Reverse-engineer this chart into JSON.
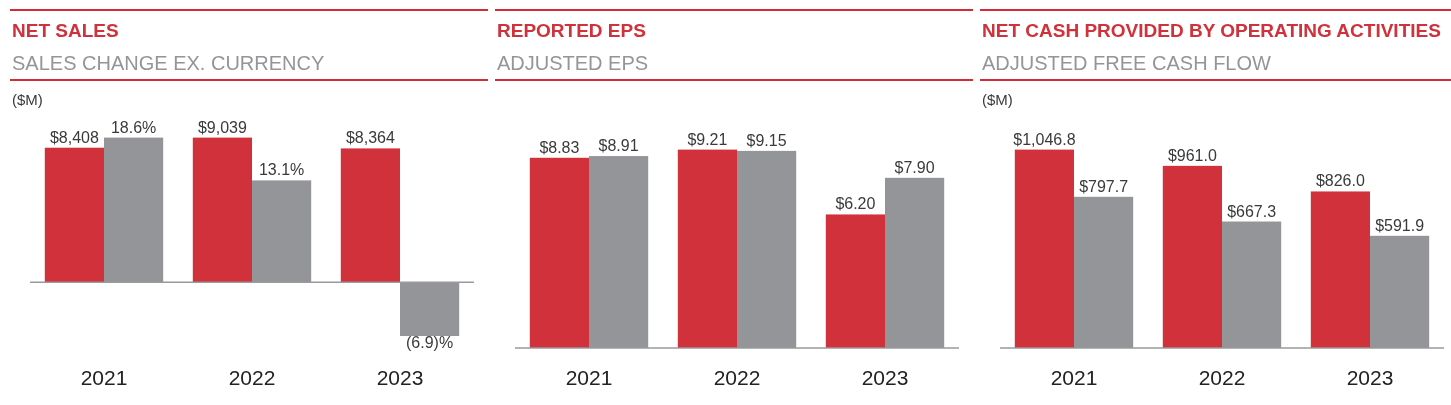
{
  "chart_data": [
    {
      "type": "bar",
      "ylabel": "($M)",
      "categories": [
        "2021",
        "2022",
        "2023"
      ],
      "series": [
        {
          "name": "NET SALES",
          "color": "#d0313a",
          "values": [
            8408,
            9039,
            8364
          ],
          "value_labels": [
            "$8,408",
            "$9,039",
            "$8,364"
          ]
        },
        {
          "name": "SALES CHANGE EX. CURRENCY",
          "color": "#939598",
          "axis": "y2",
          "values": [
            18.6,
            13.1,
            -6.9
          ],
          "value_labels": [
            "18.6%",
            "13.1%",
            "(6.9)%"
          ]
        }
      ],
      "tick_labels": "x",
      "legend": "top left"
    },
    {
      "type": "bar",
      "categories": [
        "2021",
        "2022",
        "2023"
      ],
      "series": [
        {
          "name": "REPORTED EPS",
          "color": "#d0313a",
          "values": [
            8.83,
            9.21,
            6.2
          ],
          "value_labels": [
            "$8.83",
            "$9.21",
            "$6.20"
          ]
        },
        {
          "name": "ADJUSTED EPS",
          "color": "#939598",
          "values": [
            8.91,
            9.15,
            7.9
          ],
          "value_labels": [
            "$8.91",
            "$9.15",
            "$7.90"
          ]
        }
      ],
      "tick_labels": "x",
      "legend": "top left"
    },
    {
      "type": "bar",
      "ylabel": "($M)",
      "categories": [
        "2021",
        "2022",
        "2023"
      ],
      "series": [
        {
          "name": "NET CASH PROVIDED BY OPERATING ACTIVITIES",
          "color": "#d0313a",
          "values": [
            1046.8,
            961.0,
            826.0
          ],
          "value_labels": [
            "$1,046.8",
            "$961.0",
            "$826.0"
          ]
        },
        {
          "name": "ADJUSTED FREE CASH FLOW",
          "color": "#939598",
          "values": [
            797.7,
            667.3,
            591.9
          ],
          "value_labels": [
            "$797.7",
            "$667.3",
            "$591.9"
          ]
        }
      ],
      "tick_labels": "x",
      "legend": "top left"
    }
  ]
}
